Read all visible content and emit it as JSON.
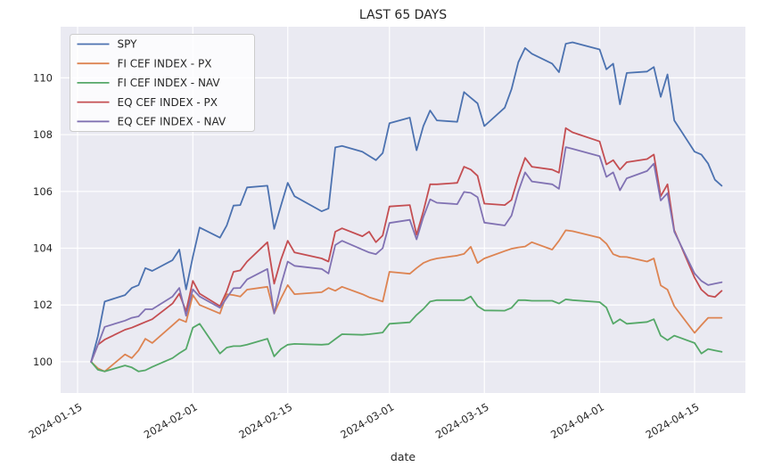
{
  "chart_data": {
    "type": "line",
    "title": "LAST 65 DAYS",
    "xlabel": "date",
    "ylabel": "",
    "grid": true,
    "legend_position": "upper left",
    "background_color": "#eaeaf2",
    "grid_color": "#ffffff",
    "text_color": "#262626",
    "ylim": [
      98.9,
      111.8
    ],
    "xlim": [
      "2024-01-12T12:00:00Z",
      "2024-04-22T12:00:00Z"
    ],
    "yticks": [
      100,
      102,
      104,
      106,
      108,
      110
    ],
    "xticks": [
      "2024-01-15",
      "2024-02-01",
      "2024-02-15",
      "2024-03-01",
      "2024-03-15",
      "2024-04-01",
      "2024-04-15"
    ],
    "x": [
      "2024-01-17",
      "2024-01-18",
      "2024-01-19",
      "2024-01-22",
      "2024-01-23",
      "2024-01-24",
      "2024-01-25",
      "2024-01-26",
      "2024-01-29",
      "2024-01-30",
      "2024-01-31",
      "2024-02-01",
      "2024-02-02",
      "2024-02-05",
      "2024-02-06",
      "2024-02-07",
      "2024-02-08",
      "2024-02-09",
      "2024-02-12",
      "2024-02-13",
      "2024-02-14",
      "2024-02-15",
      "2024-02-16",
      "2024-02-20",
      "2024-02-21",
      "2024-02-22",
      "2024-02-23",
      "2024-02-26",
      "2024-02-27",
      "2024-02-28",
      "2024-02-29",
      "2024-03-01",
      "2024-03-04",
      "2024-03-05",
      "2024-03-06",
      "2024-03-07",
      "2024-03-08",
      "2024-03-11",
      "2024-03-12",
      "2024-03-13",
      "2024-03-14",
      "2024-03-15",
      "2024-03-18",
      "2024-03-19",
      "2024-03-20",
      "2024-03-21",
      "2024-03-22",
      "2024-03-25",
      "2024-03-26",
      "2024-03-27",
      "2024-03-28",
      "2024-04-01",
      "2024-04-02",
      "2024-04-03",
      "2024-04-04",
      "2024-04-05",
      "2024-04-08",
      "2024-04-09",
      "2024-04-10",
      "2024-04-11",
      "2024-04-12",
      "2024-04-15",
      "2024-04-16",
      "2024-04-17",
      "2024-04-18",
      "2024-04-19"
    ],
    "series": [
      {
        "name": "SPY",
        "color": "#4C72B0",
        "values": [
          100.0,
          100.9,
          102.12,
          102.35,
          102.6,
          102.7,
          103.3,
          103.2,
          103.58,
          103.95,
          102.55,
          103.7,
          104.73,
          104.37,
          104.8,
          105.5,
          105.52,
          106.14,
          106.2,
          104.68,
          105.5,
          106.3,
          105.83,
          105.3,
          105.4,
          107.55,
          107.6,
          107.4,
          107.25,
          107.1,
          107.35,
          108.4,
          108.6,
          107.45,
          108.3,
          108.85,
          108.5,
          108.45,
          109.5,
          109.3,
          109.1,
          108.3,
          108.95,
          109.6,
          110.55,
          111.05,
          110.85,
          110.5,
          110.2,
          111.2,
          111.25,
          111.0,
          110.3,
          110.5,
          109.07,
          110.17,
          110.22,
          110.38,
          109.33,
          110.12,
          108.5,
          107.4,
          107.3,
          106.98,
          106.41,
          106.2
        ]
      },
      {
        "name": "FI CEF INDEX - PX",
        "color": "#DD8452",
        "values": [
          100.0,
          99.77,
          99.66,
          100.26,
          100.13,
          100.4,
          100.81,
          100.66,
          101.29,
          101.5,
          101.4,
          102.35,
          102.0,
          101.7,
          102.38,
          102.35,
          102.3,
          102.54,
          102.64,
          101.7,
          102.23,
          102.7,
          102.38,
          102.45,
          102.6,
          102.5,
          102.64,
          102.38,
          102.27,
          102.2,
          102.12,
          103.17,
          103.1,
          103.3,
          103.48,
          103.58,
          103.64,
          103.74,
          103.8,
          104.05,
          103.48,
          103.64,
          103.9,
          103.98,
          104.03,
          104.06,
          104.21,
          103.95,
          104.26,
          104.63,
          104.6,
          104.37,
          104.16,
          103.79,
          103.7,
          103.69,
          103.53,
          103.64,
          102.69,
          102.54,
          101.96,
          101.02,
          101.29,
          101.55,
          101.55,
          101.55
        ]
      },
      {
        "name": "FI CEF INDEX - NAV",
        "color": "#55A868",
        "values": [
          100.0,
          99.72,
          99.66,
          99.87,
          99.8,
          99.66,
          99.7,
          99.82,
          100.13,
          100.3,
          100.45,
          101.2,
          101.34,
          100.29,
          100.5,
          100.55,
          100.55,
          100.6,
          100.81,
          100.19,
          100.45,
          100.6,
          100.63,
          100.6,
          100.62,
          100.8,
          100.97,
          100.95,
          100.97,
          101.0,
          101.03,
          101.34,
          101.39,
          101.65,
          101.86,
          102.12,
          102.17,
          102.17,
          102.17,
          102.3,
          101.96,
          101.81,
          101.8,
          101.9,
          102.17,
          102.17,
          102.15,
          102.15,
          102.05,
          102.2,
          102.17,
          102.1,
          101.91,
          101.34,
          101.5,
          101.34,
          101.4,
          101.5,
          100.92,
          100.76,
          100.92,
          100.66,
          100.29,
          100.45,
          100.4,
          100.35
        ]
      },
      {
        "name": "EQ CEF INDEX - PX",
        "color": "#C44E52",
        "values": [
          100.0,
          100.6,
          100.78,
          101.13,
          101.2,
          101.3,
          101.4,
          101.5,
          102.05,
          102.4,
          101.78,
          102.85,
          102.4,
          101.96,
          102.48,
          103.17,
          103.22,
          103.53,
          104.21,
          102.75,
          103.6,
          104.26,
          103.85,
          103.64,
          103.53,
          104.58,
          104.7,
          104.42,
          104.58,
          104.21,
          104.45,
          105.47,
          105.52,
          104.47,
          105.3,
          106.25,
          106.25,
          106.3,
          106.87,
          106.77,
          106.55,
          105.57,
          105.52,
          105.7,
          106.5,
          107.18,
          106.87,
          106.77,
          106.66,
          108.23,
          108.08,
          107.76,
          106.95,
          107.1,
          106.77,
          107.03,
          107.14,
          107.3,
          105.83,
          106.25,
          104.63,
          102.96,
          102.54,
          102.33,
          102.28,
          102.5
        ]
      },
      {
        "name": "EQ CEF INDEX - NAV",
        "color": "#8172B3",
        "values": [
          100.0,
          100.6,
          101.23,
          101.45,
          101.55,
          101.6,
          101.85,
          101.85,
          102.3,
          102.6,
          101.62,
          102.55,
          102.3,
          101.9,
          102.25,
          102.59,
          102.6,
          102.9,
          103.27,
          101.7,
          102.7,
          103.53,
          103.38,
          103.27,
          103.11,
          104.11,
          104.26,
          103.95,
          103.85,
          103.79,
          104.0,
          104.89,
          105.0,
          104.31,
          105.1,
          105.72,
          105.6,
          105.55,
          105.98,
          105.95,
          105.8,
          104.9,
          104.8,
          105.15,
          106.0,
          106.67,
          106.35,
          106.25,
          106.09,
          107.56,
          107.5,
          107.24,
          106.51,
          106.67,
          106.04,
          106.46,
          106.72,
          106.98,
          105.68,
          105.94,
          104.58,
          103.11,
          102.85,
          102.7,
          102.75,
          102.8
        ]
      }
    ]
  }
}
